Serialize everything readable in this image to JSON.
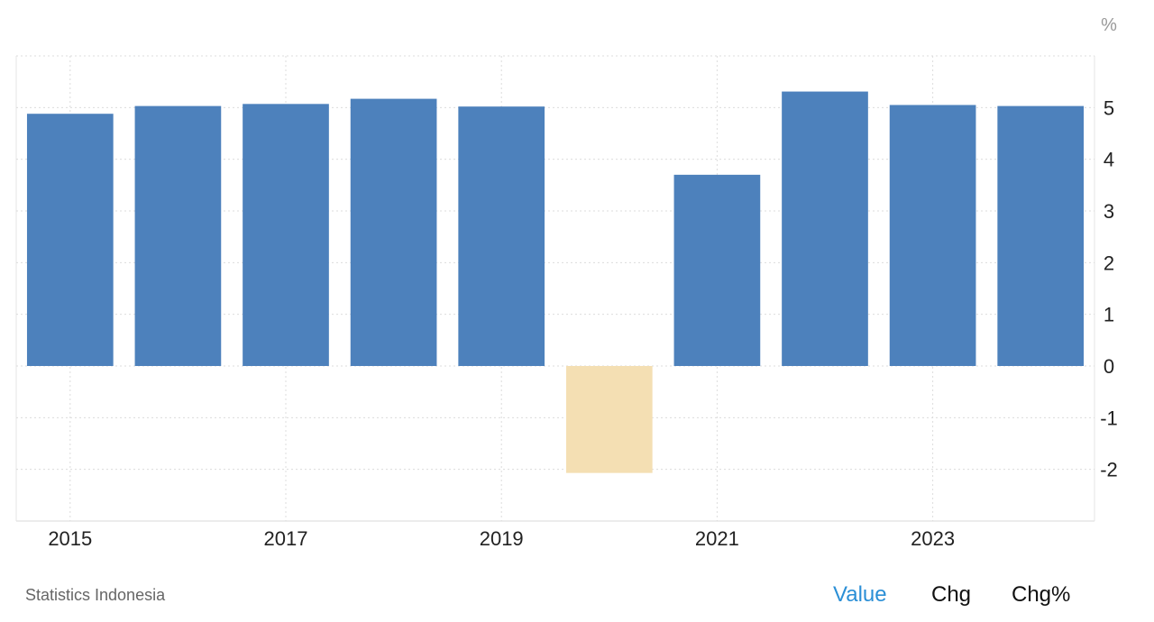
{
  "chart_data": {
    "type": "bar",
    "unit_label": "%",
    "x": [
      2015,
      2016,
      2017,
      2018,
      2019,
      2020,
      2021,
      2022,
      2023,
      2024
    ],
    "x_tick_labels": [
      "2015",
      "2017",
      "2019",
      "2021",
      "2023"
    ],
    "values": [
      4.88,
      5.03,
      5.07,
      5.17,
      5.02,
      -2.07,
      3.7,
      5.31,
      5.05,
      5.03
    ],
    "ylim": [
      -3,
      6
    ],
    "y_ticks": [
      -2,
      -1,
      0,
      1,
      2,
      3,
      4,
      5
    ],
    "grid": true,
    "colors": {
      "positive": "#4d81bc",
      "negative": "#f4dfb3"
    }
  },
  "footer": {
    "source": "Statistics Indonesia",
    "tabs": [
      {
        "label": "Value",
        "active": true
      },
      {
        "label": "Chg",
        "active": false
      },
      {
        "label": "Chg%",
        "active": false
      }
    ]
  }
}
